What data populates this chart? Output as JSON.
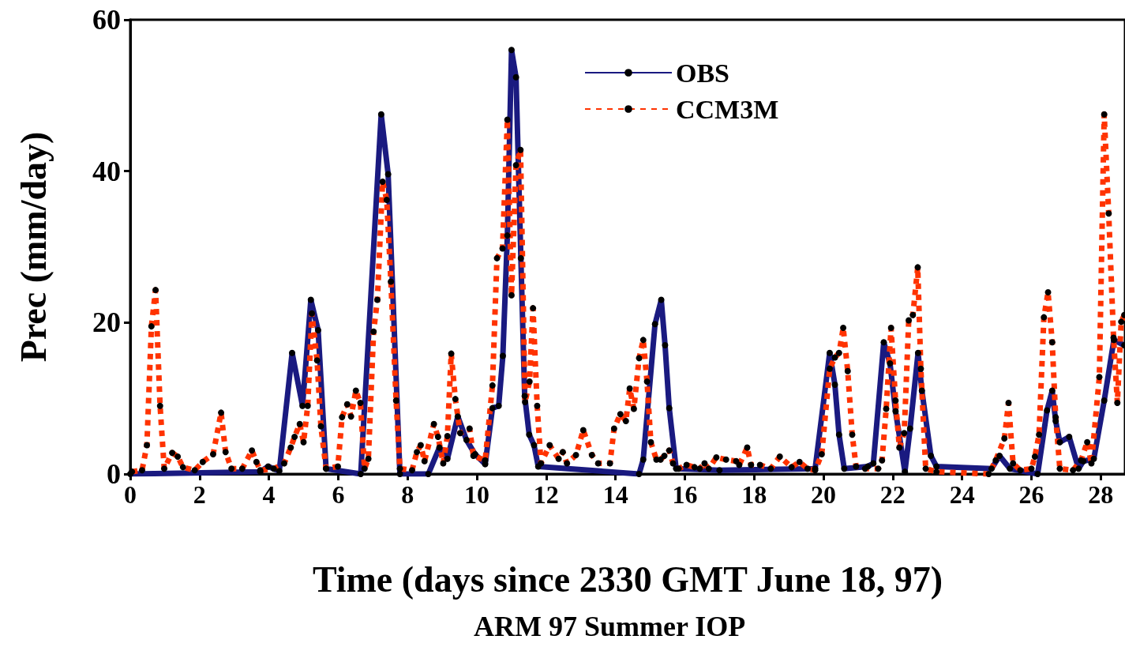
{
  "chart_data": {
    "type": "line",
    "xlabel": "Time (days since 2330 GMT June 18, 97)",
    "ylabel": "Prec (mm/day)",
    "annotations": [
      "ARM 97 Summer IOP"
    ],
    "xlim": [
      0,
      28.7
    ],
    "xticks": [
      0,
      2,
      4,
      6,
      8,
      10,
      12,
      14,
      16,
      18,
      20,
      22,
      24,
      26,
      28
    ],
    "ylim": [
      0,
      60
    ],
    "yticks": [
      0,
      20,
      40,
      60
    ],
    "grid": false,
    "legend": "top",
    "marker": "circle",
    "series": [
      {
        "name": "OBS",
        "color": "#1a1a80",
        "line_style": "solid",
        "x": [
          0,
          3.75,
          3.98,
          4.3,
          4.67,
          4.97,
          5.21,
          5.42,
          5.65,
          6.65,
          7.24,
          7.44,
          7.78,
          8.6,
          8.92,
          9.15,
          9.45,
          9.7,
          9.95,
          10.24,
          10.45,
          10.63,
          10.75,
          10.88,
          11.0,
          11.13,
          11.27,
          11.38,
          11.51,
          11.65,
          11.77,
          14.68,
          14.8,
          15.14,
          15.32,
          15.43,
          15.55,
          15.75,
          17.0,
          19.76,
          20.18,
          20.33,
          20.45,
          20.6,
          21.28,
          21.44,
          21.74,
          21.92,
          22.08,
          22.35,
          22.5,
          22.73,
          22.84,
          23.1,
          23.26,
          24.85,
          25.08,
          25.38,
          26.18,
          26.45,
          26.6,
          26.7,
          26.82,
          27.09,
          27.36,
          27.5,
          27.8,
          28.1,
          28.38,
          28.68
        ],
        "values": [
          0,
          0.3,
          1,
          0.4,
          16,
          9,
          23,
          19,
          0.7,
          0,
          47.5,
          39.6,
          0,
          0,
          3.5,
          2,
          7.6,
          4.5,
          2.6,
          1.3,
          8.7,
          9,
          15.6,
          31.5,
          56,
          52.4,
          28.5,
          10.3,
          5.2,
          3.8,
          1,
          0,
          1.9,
          19.8,
          23,
          17,
          8.7,
          0.7,
          0.5,
          0.7,
          16,
          11.8,
          5.2,
          0.7,
          1,
          1.4,
          17.4,
          14.6,
          8.3,
          0.3,
          6,
          16,
          11,
          2.4,
          1,
          0.7,
          2.4,
          0.7,
          0,
          8.4,
          11,
          7,
          4.2,
          4.9,
          0.7,
          1.7,
          2,
          9.7,
          17.7,
          17
        ]
      },
      {
        "name": "CCM3M",
        "color": "#ff3300",
        "line_style": "dotted",
        "x": [
          0.05,
          0.34,
          0.48,
          0.61,
          0.73,
          0.86,
          0.98,
          1.21,
          1.37,
          1.52,
          1.86,
          2.09,
          2.39,
          2.62,
          2.75,
          2.92,
          3.23,
          3.51,
          3.64,
          3.75,
          4.14,
          4.44,
          4.63,
          4.74,
          4.89,
          5.0,
          5.12,
          5.24,
          5.39,
          5.5,
          5.65,
          5.99,
          6.11,
          6.26,
          6.37,
          6.51,
          6.64,
          6.76,
          6.87,
          7.02,
          7.13,
          7.28,
          7.4,
          7.52,
          7.67,
          7.78,
          8.13,
          8.27,
          8.38,
          8.49,
          8.76,
          8.88,
          9.03,
          9.15,
          9.26,
          9.38,
          9.52,
          9.79,
          9.9,
          10.24,
          10.45,
          10.58,
          10.74,
          10.88,
          11.0,
          11.13,
          11.26,
          11.39,
          11.52,
          11.62,
          11.74,
          11.85,
          12.1,
          12.36,
          12.48,
          12.6,
          12.86,
          13.07,
          13.32,
          13.5,
          13.84,
          13.96,
          14.14,
          14.3,
          14.41,
          14.53,
          14.68,
          14.8,
          14.91,
          15.02,
          15.18,
          15.3,
          15.41,
          15.55,
          15.66,
          15.82,
          16.05,
          16.28,
          16.43,
          16.57,
          16.69,
          16.91,
          17.19,
          17.48,
          17.57,
          17.8,
          17.91,
          18.17,
          18.48,
          18.74,
          19.08,
          19.31,
          19.54,
          19.76,
          19.95,
          20.18,
          20.33,
          20.45,
          20.57,
          20.7,
          20.83,
          20.94,
          21.2,
          21.58,
          21.69,
          21.81,
          21.95,
          22.08,
          22.19,
          22.33,
          22.46,
          22.58,
          22.72,
          22.81,
          22.95,
          23.26,
          24.77,
          24.97,
          25.22,
          25.34,
          25.47,
          25.68,
          26.0,
          26.1,
          26.22,
          26.36,
          26.48,
          26.6,
          26.7,
          26.82,
          27.2,
          27.43,
          27.61,
          27.73,
          27.96,
          28.1,
          28.23,
          28.37,
          28.48,
          28.59,
          28.68
        ],
        "values": [
          0.3,
          0.5,
          3.8,
          19.5,
          24.3,
          9,
          0.7,
          2.8,
          2.3,
          0.9,
          0.5,
          1.6,
          2.6,
          8.1,
          2.9,
          0.7,
          0.7,
          3.1,
          1.6,
          0.5,
          0.7,
          1.4,
          3.5,
          4.9,
          6.6,
          4.2,
          9,
          21.2,
          15,
          6.3,
          0.7,
          1,
          7.5,
          9.2,
          7.6,
          11,
          9.4,
          0.7,
          2,
          18.8,
          23,
          38.6,
          36.2,
          25.4,
          9.7,
          0.7,
          0.5,
          2.9,
          3.8,
          1.7,
          6.6,
          4.9,
          1.4,
          5,
          15.9,
          9.9,
          5.4,
          6,
          2.4,
          1.8,
          11.7,
          28.5,
          29.8,
          46.8,
          23.6,
          40.8,
          42.8,
          9.5,
          12.2,
          21.9,
          9,
          1.4,
          3.8,
          2,
          2.9,
          1.4,
          2.5,
          5.8,
          2.5,
          1.4,
          1.4,
          6,
          7.9,
          7,
          11.3,
          8.6,
          15.3,
          17.7,
          12.2,
          4.2,
          1.9,
          1.9,
          2.4,
          3.1,
          1.4,
          0.7,
          1.2,
          0.9,
          0.7,
          1.4,
          0.7,
          2.2,
          1.9,
          1.7,
          1.2,
          3.5,
          1.2,
          1.2,
          0.7,
          2.3,
          0.9,
          1.6,
          0.7,
          0.5,
          2.6,
          13.9,
          15.4,
          16,
          19.3,
          13.6,
          5.2,
          1,
          0.7,
          0.7,
          1.8,
          8.6,
          19.3,
          9.7,
          3.5,
          5.4,
          20.3,
          21,
          27.3,
          13.9,
          0.7,
          0.3,
          0,
          1.8,
          4.7,
          9.4,
          1.4,
          0.5,
          0.7,
          2.3,
          5.2,
          20.7,
          24,
          17.4,
          7.5,
          0.7,
          0.5,
          1.8,
          4.2,
          1.4,
          12.8,
          47.5,
          34.4,
          18,
          9.4,
          20.1,
          21
        ]
      }
    ]
  }
}
